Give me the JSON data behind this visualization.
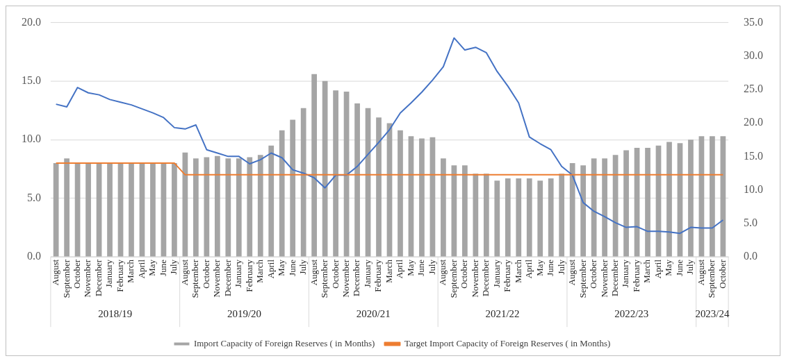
{
  "chart_data": {
    "type": "bar",
    "categories": [
      "August",
      "September",
      "October",
      "November",
      "December",
      "January",
      "February",
      "March",
      "April",
      "May",
      "June",
      "July",
      "August",
      "September",
      "October",
      "November",
      "December",
      "January",
      "February",
      "March",
      "April",
      "May",
      "June",
      "July",
      "August",
      "September",
      "October",
      "November",
      "December",
      "January",
      "February",
      "March",
      "April",
      "May",
      "June",
      "July",
      "August",
      "September",
      "October",
      "November",
      "December",
      "January",
      "February",
      "March",
      "April",
      "May",
      "June",
      "July",
      "August",
      "September",
      "October",
      "November",
      "December",
      "January",
      "February",
      "March",
      "April",
      "May",
      "June",
      "July",
      "August",
      "September",
      "October"
    ],
    "series": [
      {
        "name": "Import Capacity of Foreign Reserves ( in Months)",
        "color": "#a5a5a5",
        "values": [
          8.0,
          8.4,
          8.0,
          8.0,
          8.0,
          8.0,
          8.0,
          8.0,
          8.0,
          8.0,
          8.0,
          8.0,
          8.9,
          8.4,
          8.5,
          8.6,
          8.4,
          8.4,
          8.5,
          8.7,
          9.5,
          10.8,
          11.7,
          12.7,
          15.6,
          15.0,
          14.2,
          14.1,
          13.1,
          12.7,
          11.9,
          11.4,
          10.8,
          10.3,
          10.1,
          10.2,
          8.4,
          7.8,
          7.8,
          7.1,
          7.1,
          6.5,
          6.7,
          6.7,
          6.7,
          6.5,
          6.7,
          7.1,
          8.0,
          7.8,
          8.4,
          8.4,
          8.7,
          9.1,
          9.3,
          9.3,
          9.5,
          9.8,
          9.7,
          10.0,
          10.3,
          10.3,
          10.3
        ]
      },
      {
        "name": "Target Import Capacity of Foreign Reserves ( in Months)",
        "type": "line",
        "color": "#ed7d31",
        "values": [
          8.0,
          8.0,
          8.0,
          8.0,
          8.0,
          8.0,
          8.0,
          8.0,
          8.0,
          8.0,
          8.0,
          8.0,
          7.0,
          7.0,
          7.0,
          7.0,
          7.0,
          7.0,
          7.0,
          7.0,
          7.0,
          7.0,
          7.0,
          7.0,
          7.0,
          7.0,
          7.0,
          7.0,
          7.0,
          7.0,
          7.0,
          7.0,
          7.0,
          7.0,
          7.0,
          7.0,
          7.0,
          7.0,
          7.0,
          7.0,
          7.0,
          7.0,
          7.0,
          7.0,
          7.0,
          7.0,
          7.0,
          7.0,
          7.0,
          7.0,
          7.0,
          7.0,
          7.0,
          7.0,
          7.0,
          7.0,
          7.0,
          7.0,
          7.0,
          7.0,
          7.0,
          7.0,
          7.0
        ]
      },
      {
        "type": "line",
        "axis": "y2",
        "color": "#4472c4",
        "values": [
          22.8,
          22.4,
          25.3,
          24.5,
          24.2,
          23.5,
          23.1,
          22.7,
          22.1,
          21.5,
          20.8,
          19.3,
          19.1,
          19.7,
          16.0,
          15.5,
          15.0,
          15.0,
          13.9,
          14.5,
          15.5,
          14.8,
          13.0,
          12.5,
          11.8,
          10.3,
          12.2,
          12.2,
          13.5,
          15.3,
          17.1,
          19.0,
          21.5,
          23.0,
          24.6,
          26.4,
          28.4,
          32.7,
          30.9,
          31.3,
          30.5,
          27.7,
          25.5,
          23.0,
          17.9,
          16.9,
          16.0,
          13.5,
          12.2,
          8.1,
          6.8,
          6.0,
          5.1,
          4.4,
          4.5,
          3.8,
          3.8,
          3.7,
          3.5,
          4.4,
          4.3,
          4.3,
          5.5
        ]
      }
    ],
    "ylim": [
      0,
      20
    ],
    "yticks": [
      {
        "value": 0,
        "label": "0.0"
      },
      {
        "value": 5,
        "label": "5.0"
      },
      {
        "value": 10,
        "label": "10.0"
      },
      {
        "value": 15,
        "label": "15.0"
      },
      {
        "value": 20,
        "label": "20.0"
      }
    ],
    "y2lim": [
      0,
      35
    ],
    "y2ticks": [
      {
        "value": 0,
        "label": "0.0"
      },
      {
        "value": 5,
        "label": "5.0"
      },
      {
        "value": 10,
        "label": "10.0"
      },
      {
        "value": 15,
        "label": "15.0"
      },
      {
        "value": 20,
        "label": "20.0"
      },
      {
        "value": 25,
        "label": "25.0"
      },
      {
        "value": 30,
        "label": "30.0"
      },
      {
        "value": 35,
        "label": "35.0"
      }
    ],
    "annotations": [
      "2018/19",
      "2019/20",
      "2020/21",
      "2021/22",
      "2022/23",
      "2023/24"
    ],
    "grid": "y",
    "legend": "bottom",
    "marker": "none",
    "line_style": "solid"
  }
}
